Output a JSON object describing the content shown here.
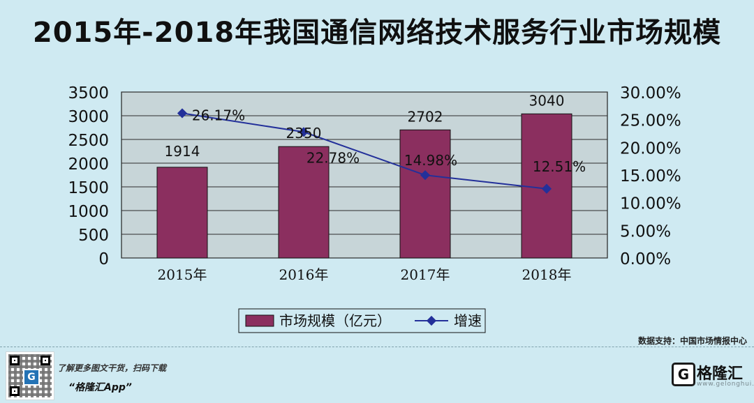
{
  "title": "2015年-2018年我国通信网络技术服务行业市场规模",
  "source": "数据支持：中国市场情报中心",
  "footer": {
    "line1": "了解更多图文干货，扫码下载",
    "line2": "“格隆汇App”",
    "brand_name": "格隆汇",
    "brand_sub": "www.gelonghui.com"
  },
  "colors": {
    "bar": "#8b2f5f",
    "line": "#23309a",
    "plot_bg": "#c7d5d8",
    "page_bg": "#cfeaf2",
    "grid": "#2c2c2c"
  },
  "icons": {
    "qr": "qr-code-icon",
    "logo": "brand-logo-icon"
  },
  "chart_data": {
    "type": "bar",
    "categories": [
      "2015年",
      "2016年",
      "2017年",
      "2018年"
    ],
    "series": [
      {
        "name": "市场规模（亿元）",
        "type": "bar",
        "axis": "left",
        "values": [
          1914,
          2350,
          2702,
          3040
        ],
        "labels": [
          "1914",
          "2350",
          "2702",
          "3040"
        ]
      },
      {
        "name": "增速",
        "type": "line",
        "axis": "right",
        "values": [
          26.17,
          22.78,
          14.98,
          12.51
        ],
        "labels": [
          "26.17%",
          "22.78%",
          "14.98%",
          "12.51%"
        ]
      }
    ],
    "left_axis": {
      "ylim": [
        0,
        3500
      ],
      "ticks": [
        0,
        500,
        1000,
        1500,
        2000,
        2500,
        3000,
        3500
      ]
    },
    "right_axis": {
      "ylim": [
        0,
        30
      ],
      "ticks": [
        "0.00%",
        "5.00%",
        "10.00%",
        "15.00%",
        "20.00%",
        "25.00%",
        "30.00%"
      ]
    },
    "grid": true,
    "legend": "bottom"
  }
}
